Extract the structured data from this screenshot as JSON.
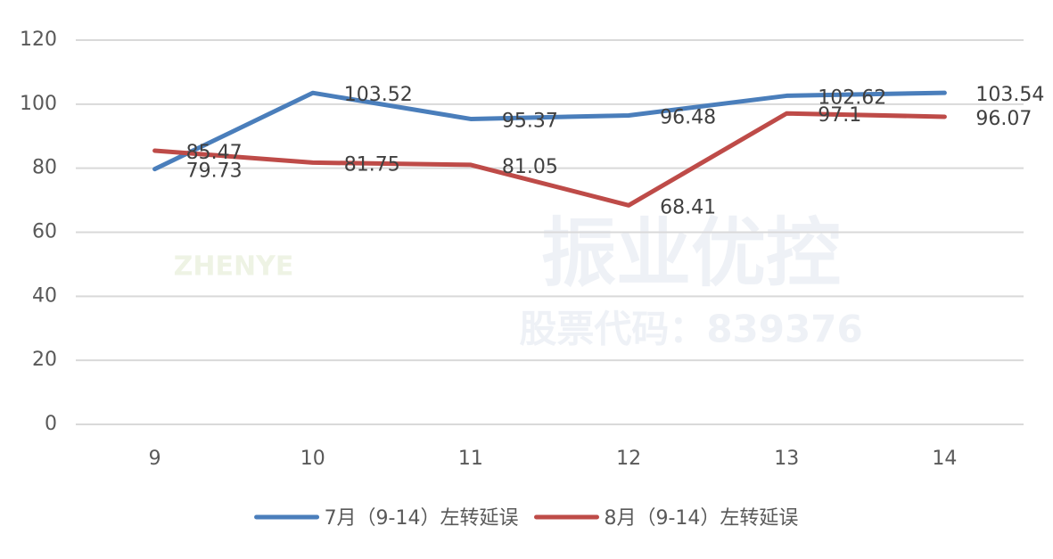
{
  "chart_data": {
    "type": "line",
    "categories": [
      "9",
      "10",
      "11",
      "12",
      "13",
      "14"
    ],
    "series": [
      {
        "name": "7月（9-14）左转延误",
        "color": "#4a7ebb",
        "values": [
          79.73,
          103.52,
          95.37,
          96.48,
          102.62,
          103.54
        ]
      },
      {
        "name": "8月（9-14）左转延误",
        "color": "#be4b48",
        "values": [
          85.47,
          81.75,
          81.05,
          68.41,
          97.1,
          96.07
        ]
      }
    ],
    "ylim": [
      0,
      120
    ],
    "yticks": [
      0,
      20,
      40,
      60,
      80,
      100,
      120
    ],
    "grid": true,
    "legend": "bottom"
  },
  "watermark": {
    "brand": "振业优控",
    "stock": "股票代码：839376",
    "logo": "ZHENYE"
  }
}
